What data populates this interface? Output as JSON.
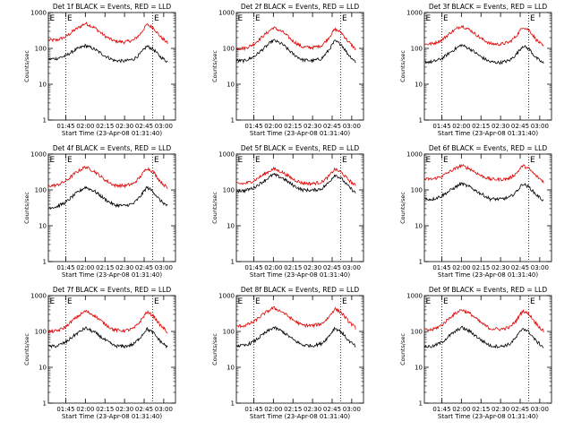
{
  "figure": {
    "background": "#ffffff",
    "axis_color": "#000000",
    "marker_color": "#000000"
  },
  "chart_data": [
    {
      "type": "line",
      "title": "Det 1f BLACK = Events, RED = LLD",
      "xlabel": "Start Time (23-Apr-08 01:31:40)",
      "ylabel": "Counts/sec",
      "yscale": "log",
      "ylim": [
        1,
        1000
      ],
      "x_ticks": [
        "01:45",
        "02:00",
        "02:15",
        "02:30",
        "02:45",
        "03:00"
      ],
      "y_ticks": [
        "1",
        "10",
        "100",
        "1000"
      ],
      "markers": [
        "E",
        "E"
      ],
      "x": [
        "01:32",
        "01:38",
        "01:45",
        "01:52",
        "02:00",
        "02:07",
        "02:15",
        "02:22",
        "02:30",
        "02:37",
        "02:42",
        "02:47",
        "02:52",
        "02:57",
        "03:03"
      ],
      "series": [
        {
          "name": "LLD",
          "color": "#e00000",
          "values": [
            170,
            170,
            210,
            330,
            500,
            380,
            220,
            160,
            150,
            170,
            250,
            460,
            380,
            220,
            140
          ]
        },
        {
          "name": "Events",
          "color": "#000000",
          "values": [
            50,
            52,
            62,
            90,
            120,
            95,
            62,
            46,
            44,
            50,
            70,
            115,
            95,
            60,
            42
          ]
        }
      ]
    },
    {
      "type": "line",
      "title": "Det 2f BLACK = Events, RED = LLD",
      "xlabel": "Start Time (23-Apr-08 01:31:40)",
      "ylabel": "Counts/sec",
      "yscale": "log",
      "ylim": [
        1,
        1000
      ],
      "x_ticks": [
        "01:45",
        "02:00",
        "02:15",
        "02:30",
        "02:45",
        "03:00"
      ],
      "y_ticks": [
        "1",
        "10",
        "100",
        "1000"
      ],
      "markers": [
        "E",
        "E"
      ],
      "x": [
        "01:32",
        "01:38",
        "01:45",
        "01:52",
        "02:00",
        "02:07",
        "02:15",
        "02:22",
        "02:30",
        "02:37",
        "02:42",
        "02:47",
        "02:52",
        "02:57",
        "03:03"
      ],
      "series": [
        {
          "name": "LLD",
          "color": "#e00000",
          "values": [
            100,
            100,
            130,
            220,
            380,
            290,
            160,
            110,
            105,
            120,
            190,
            340,
            280,
            160,
            95
          ]
        },
        {
          "name": "Events",
          "color": "#000000",
          "values": [
            45,
            45,
            58,
            95,
            170,
            130,
            70,
            48,
            45,
            52,
            85,
            160,
            130,
            70,
            42
          ]
        }
      ]
    },
    {
      "type": "line",
      "title": "Det 3f BLACK = Events, RED = LLD",
      "xlabel": "Start Time (23-Apr-08 01:31:40)",
      "ylabel": "Counts/sec",
      "yscale": "log",
      "ylim": [
        1,
        1000
      ],
      "x_ticks": [
        "01:45",
        "02:00",
        "02:15",
        "02:30",
        "02:45",
        "03:00"
      ],
      "y_ticks": [
        "1",
        "10",
        "100",
        "1000"
      ],
      "markers": [
        "E",
        "E"
      ],
      "x": [
        "01:32",
        "01:38",
        "01:45",
        "01:52",
        "02:00",
        "02:07",
        "02:15",
        "02:22",
        "02:30",
        "02:37",
        "02:42",
        "02:47",
        "02:52",
        "02:57",
        "03:03"
      ],
      "series": [
        {
          "name": "LLD",
          "color": "#e00000",
          "values": [
            130,
            135,
            170,
            280,
            430,
            320,
            190,
            135,
            130,
            150,
            220,
            400,
            320,
            180,
            110
          ]
        },
        {
          "name": "Events",
          "color": "#000000",
          "values": [
            42,
            42,
            52,
            80,
            125,
            95,
            58,
            42,
            40,
            46,
            68,
            118,
            95,
            55,
            38
          ]
        }
      ]
    },
    {
      "type": "line",
      "title": "Det 4f BLACK = Events, RED = LLD",
      "xlabel": "Start Time (23-Apr-08 01:31:40)",
      "ylabel": "Counts/sec",
      "yscale": "log",
      "ylim": [
        1,
        1000
      ],
      "x_ticks": [
        "01:45",
        "02:00",
        "02:15",
        "02:30",
        "02:45",
        "03:00"
      ],
      "y_ticks": [
        "1",
        "10",
        "100",
        "1000"
      ],
      "markers": [
        "E",
        "E"
      ],
      "x": [
        "01:32",
        "01:38",
        "01:45",
        "01:52",
        "02:00",
        "02:07",
        "02:15",
        "02:22",
        "02:30",
        "02:37",
        "02:42",
        "02:47",
        "02:52",
        "02:57",
        "03:03"
      ],
      "series": [
        {
          "name": "LLD",
          "color": "#e00000",
          "values": [
            130,
            135,
            175,
            290,
            440,
            330,
            190,
            135,
            130,
            150,
            230,
            410,
            320,
            180,
            110
          ]
        },
        {
          "name": "Events",
          "color": "#000000",
          "values": [
            32,
            34,
            45,
            75,
            120,
            92,
            55,
            38,
            36,
            42,
            65,
            118,
            90,
            52,
            35
          ]
        }
      ]
    },
    {
      "type": "line",
      "title": "Det 5f BLACK = Events, RED = LLD",
      "xlabel": "Start Time (23-Apr-08 01:31:40)",
      "ylabel": "Counts/sec",
      "yscale": "log",
      "ylim": [
        1,
        1000
      ],
      "x_ticks": [
        "01:45",
        "02:00",
        "02:15",
        "02:30",
        "02:45",
        "03:00"
      ],
      "y_ticks": [
        "1",
        "10",
        "100",
        "1000"
      ],
      "markers": [
        "E",
        "E"
      ],
      "x": [
        "01:32",
        "01:38",
        "01:45",
        "01:52",
        "02:00",
        "02:07",
        "02:15",
        "02:22",
        "02:30",
        "02:37",
        "02:42",
        "02:47",
        "02:52",
        "02:57",
        "03:03"
      ],
      "series": [
        {
          "name": "LLD",
          "color": "#e00000",
          "values": [
            150,
            150,
            180,
            260,
            390,
            310,
            200,
            155,
            150,
            165,
            230,
            380,
            310,
            200,
            130
          ]
        },
        {
          "name": "Events",
          "color": "#000000",
          "values": [
            95,
            95,
            115,
            170,
            270,
            215,
            135,
            100,
            97,
            108,
            155,
            265,
            210,
            130,
            82
          ]
        }
      ]
    },
    {
      "type": "line",
      "title": "Det 6f BLACK = Events, RED = LLD",
      "xlabel": "Start Time (23-Apr-08 01:31:40)",
      "ylabel": "Counts/sec",
      "yscale": "log",
      "ylim": [
        1,
        1000
      ],
      "x_ticks": [
        "01:45",
        "02:00",
        "02:15",
        "02:30",
        "02:45",
        "03:00"
      ],
      "y_ticks": [
        "1",
        "10",
        "100",
        "1000"
      ],
      "markers": [
        "E",
        "E"
      ],
      "x": [
        "01:32",
        "01:38",
        "01:45",
        "01:52",
        "02:00",
        "02:07",
        "02:15",
        "02:22",
        "02:30",
        "02:37",
        "02:42",
        "02:47",
        "02:52",
        "02:57",
        "03:03"
      ],
      "series": [
        {
          "name": "LLD",
          "color": "#e00000",
          "values": [
            200,
            200,
            240,
            340,
            480,
            380,
            250,
            200,
            195,
            210,
            290,
            480,
            380,
            250,
            170
          ]
        },
        {
          "name": "Events",
          "color": "#000000",
          "values": [
            55,
            55,
            68,
            100,
            150,
            118,
            78,
            56,
            55,
            62,
            88,
            150,
            118,
            75,
            50
          ]
        }
      ]
    },
    {
      "type": "line",
      "title": "Det 7f BLACK = Events, RED = LLD",
      "xlabel": "Start Time (23-Apr-08 01:31:40)",
      "ylabel": "Counts/sec",
      "yscale": "log",
      "ylim": [
        1,
        1000
      ],
      "x_ticks": [
        "01:45",
        "02:00",
        "02:15",
        "02:30",
        "02:45",
        "03:00"
      ],
      "y_ticks": [
        "1",
        "10",
        "100",
        "1000"
      ],
      "markers": [
        "E",
        "E"
      ],
      "x": [
        "01:32",
        "01:38",
        "01:45",
        "01:52",
        "02:00",
        "02:07",
        "02:15",
        "02:22",
        "02:30",
        "02:37",
        "02:42",
        "02:47",
        "02:52",
        "02:57",
        "03:03"
      ],
      "series": [
        {
          "name": "LLD",
          "color": "#e00000",
          "values": [
            100,
            102,
            135,
            230,
            370,
            280,
            160,
            110,
            105,
            120,
            190,
            350,
            275,
            155,
            95
          ]
        },
        {
          "name": "Events",
          "color": "#000000",
          "values": [
            38,
            39,
            50,
            80,
            125,
            95,
            58,
            40,
            38,
            44,
            68,
            118,
            92,
            55,
            36
          ]
        }
      ]
    },
    {
      "type": "line",
      "title": "Det 8f BLACK = Events, RED = LLD",
      "xlabel": "Start Time (23-Apr-08 01:31:40)",
      "ylabel": "Counts/sec",
      "yscale": "log",
      "ylim": [
        1,
        1000
      ],
      "x_ticks": [
        "01:45",
        "02:00",
        "02:15",
        "02:30",
        "02:45",
        "03:00"
      ],
      "y_ticks": [
        "1",
        "10",
        "100",
        "1000"
      ],
      "markers": [
        "E",
        "E"
      ],
      "x": [
        "01:32",
        "01:38",
        "01:45",
        "01:52",
        "02:00",
        "02:07",
        "02:15",
        "02:22",
        "02:30",
        "02:37",
        "02:42",
        "02:47",
        "02:52",
        "02:57",
        "03:03"
      ],
      "series": [
        {
          "name": "LLD",
          "color": "#e00000",
          "values": [
            140,
            145,
            185,
            300,
            460,
            350,
            210,
            150,
            145,
            165,
            240,
            430,
            340,
            200,
            125
          ]
        },
        {
          "name": "Events",
          "color": "#000000",
          "values": [
            40,
            40,
            52,
            82,
            130,
            100,
            60,
            42,
            40,
            46,
            70,
            125,
            98,
            58,
            38
          ]
        }
      ]
    },
    {
      "type": "line",
      "title": "Det 9f BLACK = Events, RED = LLD",
      "xlabel": "Start Time (23-Apr-08 01:31:40)",
      "ylabel": "Counts/sec",
      "yscale": "log",
      "ylim": [
        1,
        1000
      ],
      "x_ticks": [
        "01:45",
        "02:00",
        "02:15",
        "02:30",
        "02:45",
        "03:00"
      ],
      "y_ticks": [
        "1",
        "10",
        "100",
        "1000"
      ],
      "markers": [
        "E",
        "E"
      ],
      "x": [
        "01:32",
        "01:38",
        "01:45",
        "01:52",
        "02:00",
        "02:07",
        "02:15",
        "02:22",
        "02:30",
        "02:37",
        "02:42",
        "02:47",
        "02:52",
        "02:57",
        "03:03"
      ],
      "series": [
        {
          "name": "LLD",
          "color": "#e00000",
          "values": [
            110,
            112,
            150,
            260,
            410,
            310,
            175,
            120,
            115,
            130,
            200,
            380,
            300,
            170,
            100
          ]
        },
        {
          "name": "Events",
          "color": "#000000",
          "values": [
            38,
            38,
            50,
            82,
            130,
            98,
            58,
            40,
            38,
            44,
            68,
            125,
            95,
            55,
            36
          ]
        }
      ]
    }
  ]
}
